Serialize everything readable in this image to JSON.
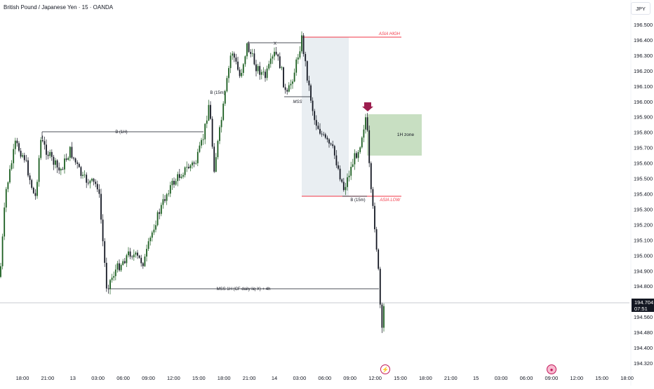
{
  "header": {
    "symbol_title": "British Pound / Japanese Yen · 15 · OANDA",
    "currency": "JPY"
  },
  "price_tag": {
    "price": "194.704",
    "countdown": "07:51"
  },
  "colors": {
    "candle": "#131722",
    "bullish_candle": "#1b5e20",
    "asia_line": "#f23645",
    "sweep_box": "#e9eef2",
    "zone_box": "#c8dfc2",
    "arrow": "#9c1d4e",
    "grid_text": "#131722",
    "event": "#c2185b"
  },
  "chart_data": {
    "type": "candlestick",
    "title": "British Pound / Japanese Yen · 15 · OANDA",
    "y_axis_ticks": [
      "196.500",
      "196.400",
      "196.300",
      "196.200",
      "196.100",
      "196.000",
      "195.900",
      "195.800",
      "195.700",
      "195.600",
      "195.500",
      "195.400",
      "195.300",
      "195.200",
      "195.100",
      "195.000",
      "194.900",
      "194.800",
      "194.640",
      "194.560",
      "194.480",
      "194.400",
      "194.320"
    ],
    "x_axis_ticks": [
      "18:00",
      "21:00",
      "13",
      "03:00",
      "06:00",
      "09:00",
      "12:00",
      "15:00",
      "18:00",
      "21:00",
      "14",
      "03:00",
      "06:00",
      "09:00",
      "12:00",
      "15:00",
      "18:00",
      "21:00",
      "15",
      "03:00",
      "06:00",
      "09:00",
      "12:00",
      "15:00",
      "18:00"
    ],
    "last_price": 194.704,
    "annotations": {
      "asia_high": {
        "label": "ASIA HIGH",
        "price": 196.42
      },
      "asia_low": {
        "label": "ASIA LOW",
        "price": 195.39
      },
      "bos_1h": {
        "label": "B (1H)",
        "price": 195.82
      },
      "bos_15m_upper": {
        "label": "B (15m)",
        "price": 196.36
      },
      "x_mark": {
        "label": "X",
        "price": 196.37
      },
      "mss": {
        "label": "MSS",
        "price": 196.03
      },
      "bos_15m_lower": {
        "label": "B (15m)",
        "price": 195.39
      },
      "mss_1h": {
        "label": "MSS 1H (CF daily liq X) + 4h",
        "price": 194.78
      },
      "zone_1h": {
        "label": "1H zone",
        "top": 195.92,
        "bottom": 195.66
      }
    },
    "series": [
      {
        "candle_walk": [
          [
            "01:00",
            194.9,
            195.15,
            195.28,
            0
          ],
          [
            "02:00",
            195.4,
            195.55,
            195.7,
            0
          ],
          [
            "03:00",
            195.8,
            195.6,
            195.65,
            195.45
          ],
          [
            "03:45",
            195.35,
            195.5,
            195.7,
            195.45
          ],
          [
            "05:00",
            195.4,
            195.55,
            195.35,
            195.55
          ],
          [
            "06:00",
            195.45,
            195.32,
            194.9,
            194.8
          ],
          [
            "06:45",
            194.9,
            195.05,
            194.95,
            195.1
          ],
          [
            "08:00",
            195.0,
            195.2,
            195.1,
            195.3
          ],
          [
            "09:00",
            195.2,
            195.45,
            195.35,
            195.6
          ],
          [
            "10:00",
            195.55,
            195.6,
            195.65,
            195.8
          ],
          [
            "10:45",
            196.0,
            196.1,
            196.02,
            195.95
          ],
          [
            "11:30",
            195.8,
            196.05,
            196.25,
            196.3
          ],
          [
            "12:00",
            196.38,
            196.2,
            196.3,
            196.35
          ],
          [
            "13:00",
            196.25,
            196.32,
            196.38,
            196.4
          ],
          [
            "13:45",
            196.1,
            196.15,
            196.25,
            196.4
          ],
          [
            "14:30",
            196.2,
            196.1,
            195.95,
            195.85
          ],
          [
            "15:15",
            195.75,
            195.8,
            195.7,
            195.6
          ],
          [
            "16:00",
            195.55,
            195.45,
            195.4,
            195.55
          ],
          [
            "16:45",
            195.65,
            195.7,
            195.8,
            195.9
          ],
          [
            "17:30",
            195.85,
            195.5,
            195.45,
            195.3
          ],
          [
            "18:15",
            195.2,
            195.0,
            194.85,
            194.75
          ],
          [
            "19:00",
            194.65,
            194.55,
            194.6,
            194.7
          ]
        ]
      }
    ]
  }
}
